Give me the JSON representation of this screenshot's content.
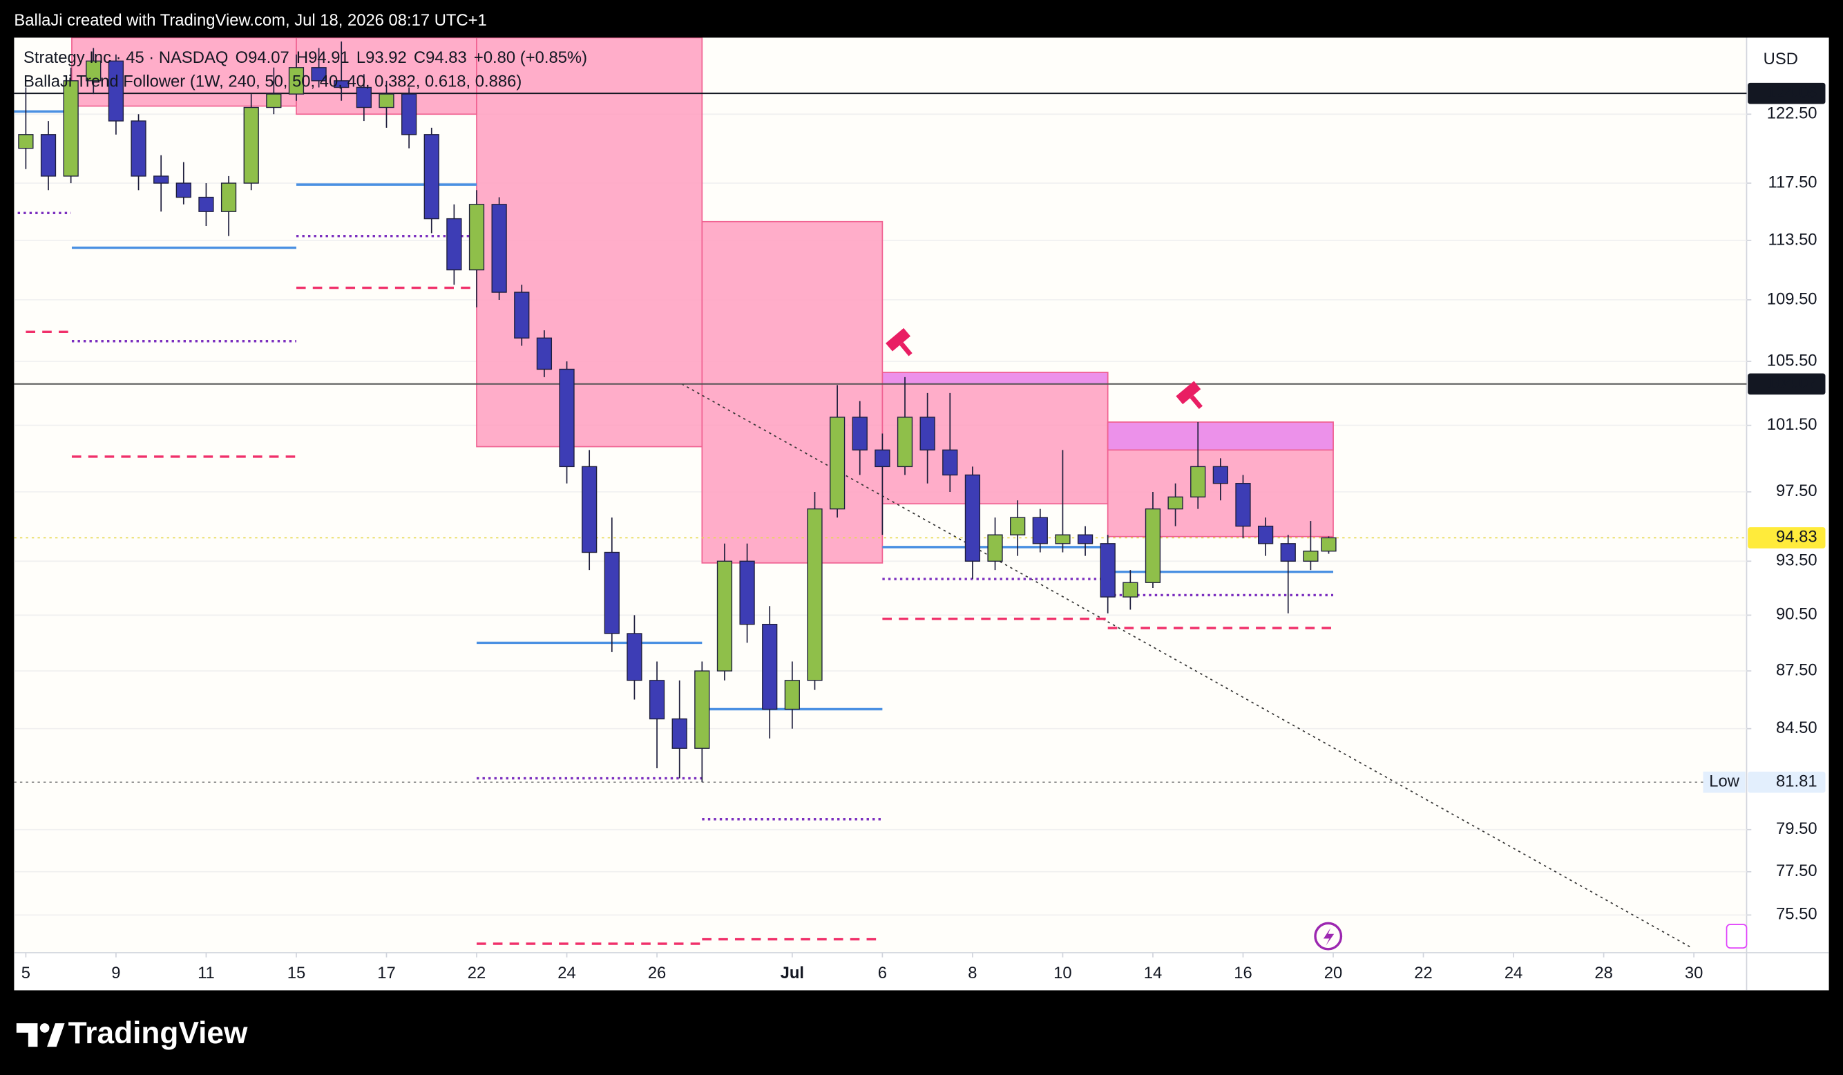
{
  "header": {
    "caption": "BallaJi created with TradingView.com, Jul 18, 2026 08:17 UTC+1"
  },
  "footer": {
    "logo": "TradingView"
  },
  "chart_data": {
    "type": "candlestick",
    "title": "Strategy Inc · 45 · NASDAQ",
    "ohlc_legend": [
      "O94.07",
      "H94.91",
      "L93.92",
      "C94.83",
      "+0.80 (+0.85%)"
    ],
    "indicator": "BallaJi Trend Follower (1W, 240, 50, 50, 40, 40, 0.382, 0.618, 0.886)",
    "currency": "USD",
    "log_scale": true,
    "grid": true,
    "xlim": [
      -0.26,
      38.17
    ],
    "xticks": [
      {
        "value": 0,
        "label": "5"
      },
      {
        "value": 2,
        "label": "9"
      },
      {
        "value": 4,
        "label": "11"
      },
      {
        "value": 6,
        "label": "15"
      },
      {
        "value": 8,
        "label": "17"
      },
      {
        "value": 10,
        "label": "22"
      },
      {
        "value": 12,
        "label": "24"
      },
      {
        "value": 14,
        "label": "26"
      },
      {
        "value": 17,
        "label": "Jul"
      },
      {
        "value": 19,
        "label": "6"
      },
      {
        "value": 21,
        "label": "8"
      },
      {
        "value": 23,
        "label": "10"
      },
      {
        "value": 25,
        "label": "14"
      },
      {
        "value": 27,
        "label": "16"
      },
      {
        "value": 29,
        "label": "20"
      },
      {
        "value": 31,
        "label": "22"
      },
      {
        "value": 33,
        "label": "24"
      },
      {
        "value": 35,
        "label": "28"
      },
      {
        "value": 37,
        "label": "30"
      }
    ],
    "ylim": [
      73.8,
      128.3
    ],
    "yticks": [
      {
        "value": 122.5,
        "label": "122.50"
      },
      {
        "value": 117.5,
        "label": "117.50"
      },
      {
        "value": 113.5,
        "label": "113.50"
      },
      {
        "value": 109.5,
        "label": "109.50"
      },
      {
        "value": 105.5,
        "label": "105.50"
      },
      {
        "value": 101.5,
        "label": "101.50"
      },
      {
        "value": 97.5,
        "label": "97.50"
      },
      {
        "value": 93.5,
        "label": "93.50"
      },
      {
        "value": 90.5,
        "label": "90.50"
      },
      {
        "value": 87.5,
        "label": "87.50"
      },
      {
        "value": 84.5,
        "label": "84.50"
      },
      {
        "value": 79.5,
        "label": "79.50"
      },
      {
        "value": 77.5,
        "label": "77.50"
      },
      {
        "value": 75.5,
        "label": "75.50"
      }
    ],
    "up_color": "#8fbf4a",
    "down_color": "#3d3db5",
    "x": [
      0,
      0.5,
      1,
      1.5,
      2,
      2.5,
      3,
      3.5,
      4,
      4.5,
      5,
      5.5,
      6,
      6.5,
      7,
      7.5,
      8,
      8.5,
      9,
      9.5,
      10,
      10.5,
      11,
      11.5,
      12,
      12.5,
      13,
      13.5,
      14,
      14.5,
      15,
      15.5,
      16,
      16.5,
      17,
      17.5,
      18,
      18.5,
      19,
      19.5,
      20,
      20.5,
      21,
      21.5,
      22,
      22.5,
      23,
      23.5,
      24,
      24.5,
      25,
      25.5,
      26,
      26.5,
      27,
      27.5,
      28,
      28.5,
      28.9
    ],
    "open": [
      120,
      121,
      118,
      125,
      126.5,
      122,
      118,
      117.5,
      116.5,
      115.5,
      117.5,
      123,
      124,
      126,
      125,
      124.5,
      123,
      124,
      121,
      115,
      111.5,
      116,
      110,
      107,
      105,
      99,
      94,
      89.5,
      87,
      85,
      83.5,
      87.5,
      93.5,
      90,
      85.5,
      87,
      96.5,
      102,
      100,
      99,
      102,
      100,
      98.5,
      93.5,
      95,
      96,
      94.5,
      95,
      94.5,
      91.5,
      92.3,
      96.5,
      97.2,
      99,
      98,
      95.5,
      94.5,
      93.5,
      94.07
    ],
    "high": [
      124.5,
      122,
      126,
      127.5,
      127,
      122.5,
      119.5,
      119,
      117.5,
      118,
      124,
      126,
      127,
      127.5,
      128,
      125.5,
      125,
      124.5,
      121.5,
      116,
      117,
      116.5,
      110.5,
      107.5,
      105.5,
      100,
      96,
      90.5,
      88,
      87,
      88,
      94.5,
      94.5,
      91,
      88,
      97.5,
      104,
      103,
      101,
      104.5,
      103.5,
      103.5,
      99,
      96,
      97,
      96.5,
      100,
      95.5,
      95,
      93,
      97.5,
      98,
      101.7,
      99.5,
      98.5,
      96,
      95,
      95.8,
      94.91
    ],
    "low": [
      118.5,
      117,
      117.5,
      124,
      121,
      117,
      115.5,
      116,
      114.5,
      113.8,
      117,
      122.5,
      123.5,
      124.5,
      123.5,
      122,
      121.5,
      120,
      114,
      110.5,
      109,
      109.5,
      106.5,
      104.5,
      98,
      93,
      88.5,
      86,
      82.5,
      82,
      81.81,
      87,
      89,
      84,
      84.5,
      86.5,
      96,
      98.5,
      95,
      98.5,
      98,
      97.5,
      92.5,
      93,
      93.8,
      94,
      94,
      93.8,
      90.6,
      90.8,
      92,
      95.5,
      96.5,
      97,
      94.8,
      93.8,
      90.6,
      93,
      93.92
    ],
    "close": [
      121,
      118,
      125,
      126.5,
      122,
      118,
      117.5,
      116.5,
      115.5,
      117.5,
      123,
      124,
      126,
      125,
      124.5,
      123,
      124,
      121,
      115,
      111.5,
      116,
      110,
      107,
      105,
      99,
      94,
      89.5,
      87,
      85,
      83.5,
      87.5,
      93.5,
      90,
      85.5,
      87,
      96.5,
      102,
      100,
      99,
      102,
      100,
      98.5,
      93.5,
      95,
      96,
      94.5,
      95,
      94.5,
      91.5,
      92.3,
      96.5,
      97.2,
      99,
      98,
      95.5,
      94.5,
      93.5,
      94.07,
      94.83
    ],
    "zones": [
      {
        "x": [
          1.02,
          6
        ],
        "y": [
          123.1,
          128.3
        ],
        "color": "#ff9fc0"
      },
      {
        "x": [
          6,
          10
        ],
        "y": [
          122.5,
          128.3
        ],
        "color": "#ff9fc0"
      },
      {
        "x": [
          10,
          15
        ],
        "y": [
          100.2,
          128.3
        ],
        "color": "#ff9fc0"
      },
      {
        "x": [
          15,
          19
        ],
        "y": [
          93.4,
          114.8
        ],
        "color": "#ff9fc0"
      },
      {
        "x": [
          19,
          24
        ],
        "y": [
          96.8,
          104.8
        ],
        "color": "#ff9fc0"
      },
      {
        "x": [
          19,
          24
        ],
        "y": [
          104.07,
          104.8
        ],
        "color": "#e98cf0"
      },
      {
        "x": [
          24,
          29
        ],
        "y": [
          94.9,
          101.7
        ],
        "color": "#ff9fc0"
      },
      {
        "x": [
          24,
          29
        ],
        "y": [
          100.0,
          101.7
        ],
        "color": "#e98cf0"
      }
    ],
    "levels": [
      {
        "color": "#4a90e2",
        "style": "solid",
        "segments": [
          {
            "x": [
              -0.26,
              1
            ],
            "y": 122.7
          },
          {
            "x": [
              1.02,
              6
            ],
            "y": 113.0
          },
          {
            "x": [
              6,
              10
            ],
            "y": 117.4
          },
          {
            "x": [
              10,
              15
            ],
            "y": 89.0
          },
          {
            "x": [
              15,
              19
            ],
            "y": 85.5
          },
          {
            "x": [
              19,
              24
            ],
            "y": 94.3
          },
          {
            "x": [
              24,
              29
            ],
            "y": 92.9
          }
        ]
      },
      {
        "color": "#7b2fbf",
        "style": "dotted",
        "segments": [
          {
            "x": [
              -0.18,
              1
            ],
            "y": 115.4
          },
          {
            "x": [
              1.02,
              6
            ],
            "y": 106.8
          },
          {
            "x": [
              6,
              10
            ],
            "y": 113.8
          },
          {
            "x": [
              10,
              15
            ],
            "y": 82.0
          },
          {
            "x": [
              15,
              19
            ],
            "y": 80.0
          },
          {
            "x": [
              19,
              24
            ],
            "y": 92.5
          },
          {
            "x": [
              24,
              29
            ],
            "y": 91.6
          }
        ]
      },
      {
        "color": "#f0306a",
        "style": "dashed",
        "segments": [
          {
            "x": [
              0,
              1
            ],
            "y": 107.4
          },
          {
            "x": [
              1.02,
              6
            ],
            "y": 99.6
          },
          {
            "x": [
              6,
              10
            ],
            "y": 110.3
          },
          {
            "x": [
              10,
              15
            ],
            "y": 74.2
          },
          {
            "x": [
              15,
              19
            ],
            "y": 74.4
          },
          {
            "x": [
              19,
              24
            ],
            "y": 90.3
          },
          {
            "x": [
              24,
              29
            ],
            "y": 89.8
          }
        ]
      }
    ],
    "price_lines": [
      {
        "value": 124.05,
        "color": "#131722",
        "style": "solid",
        "label_bg": "#131722",
        "label_color": "#ffffff"
      },
      {
        "value": 104.07,
        "color": "#555555",
        "style": "solid",
        "label_bg": "#131722",
        "label_color": "#ffffff"
      },
      {
        "value": 94.83,
        "color": "#e6d84a",
        "style": "dotted",
        "label_bg": "#ffeb3b",
        "label_color": "#131722"
      },
      {
        "value": 81.81,
        "color": "#888888",
        "style": "dotted",
        "label_bg": "#e3effd",
        "label_color": "#131722",
        "tag": "Low"
      }
    ],
    "trendline": {
      "x": [
        14.55,
        36.97
      ],
      "y": [
        104.07,
        74.0
      ],
      "color": "#333333"
    }
  }
}
